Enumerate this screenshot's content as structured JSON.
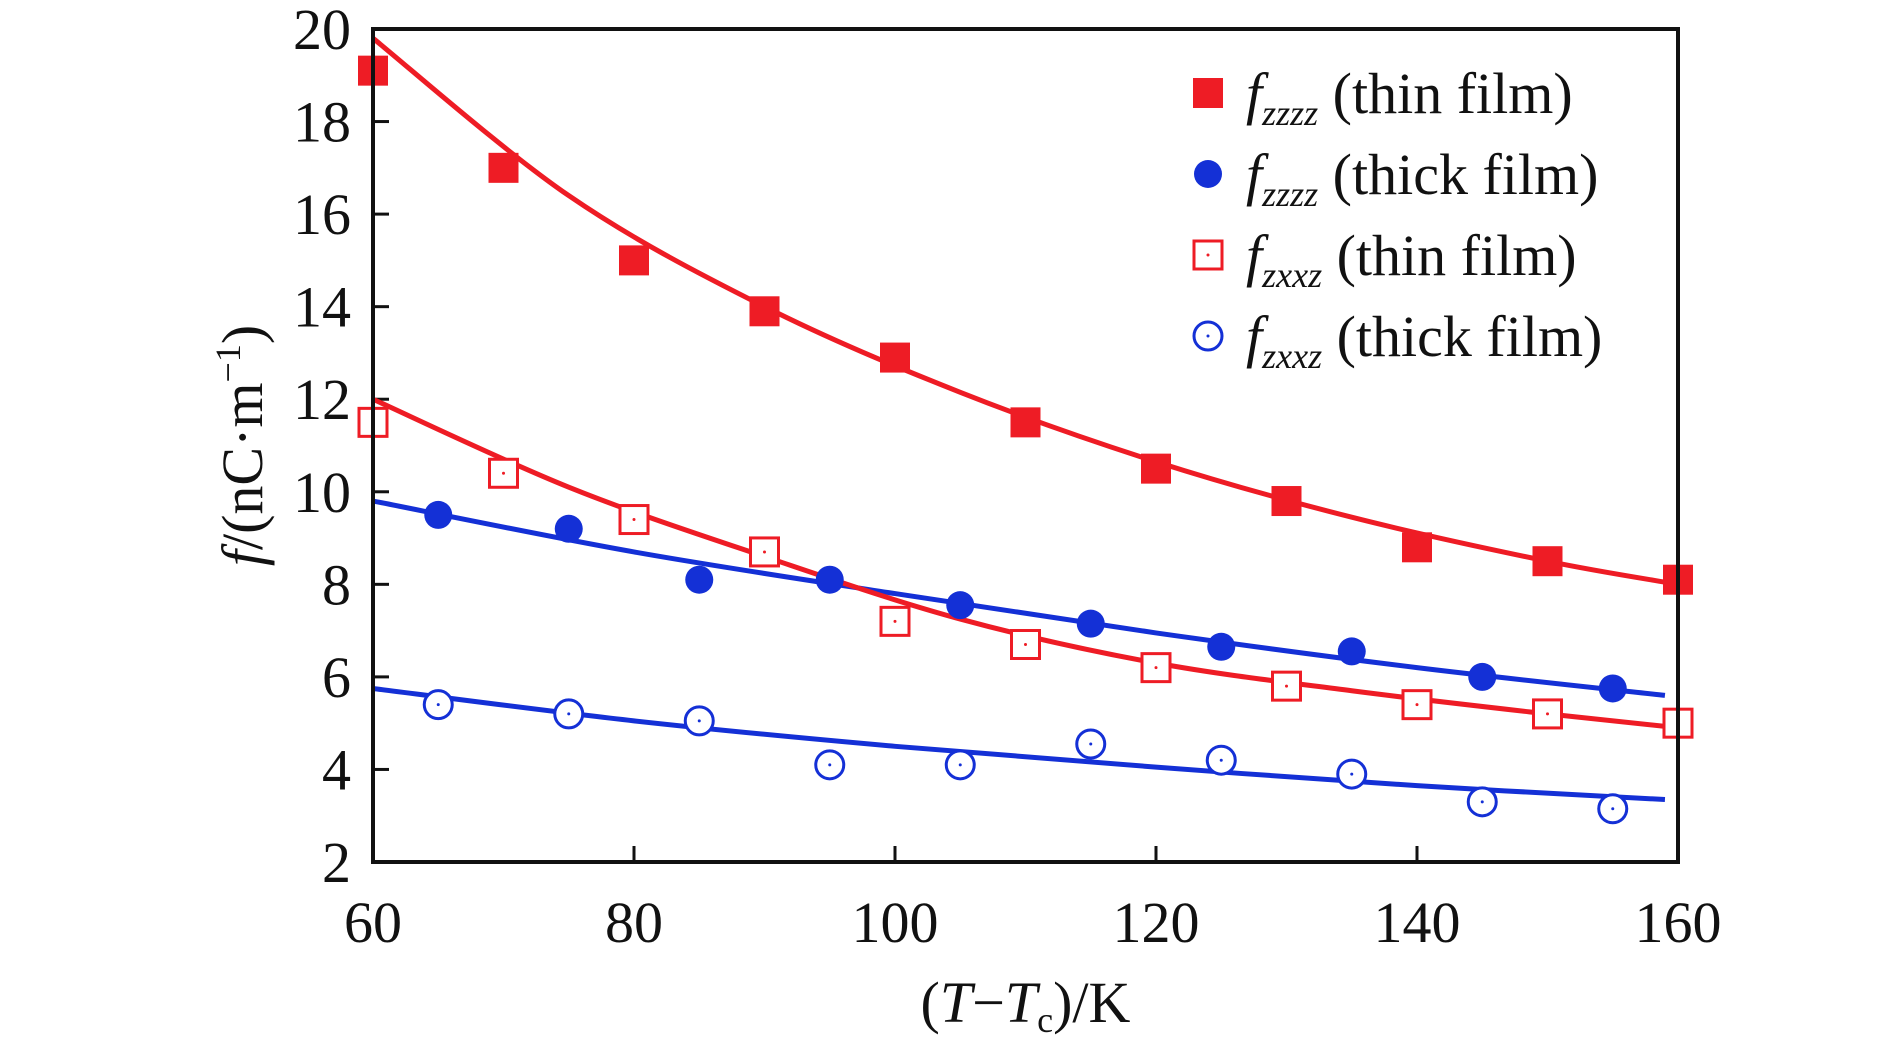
{
  "chart_data": {
    "type": "scatter",
    "xlabel": {
      "open": "(",
      "T": "T",
      "minus": "−",
      "Tc_base": "T",
      "Tc_sub": "c",
      "close": ")/K"
    },
    "ylabel": {
      "f": "f",
      "rest": "/(nC·m",
      "sup": "−1",
      "close": ")"
    },
    "xlim": [
      60,
      160
    ],
    "ylim": [
      2,
      20
    ],
    "xticks": [
      60,
      80,
      100,
      120,
      140,
      160
    ],
    "yticks": [
      2,
      4,
      6,
      8,
      10,
      12,
      14,
      16,
      18,
      20
    ],
    "legend_position": "top-right",
    "colors": {
      "red": "#ee1c25",
      "blue": "#1430d6"
    },
    "series": [
      {
        "legend_f": "f",
        "legend_sub": "zzzz",
        "legend_text": " (thin film)",
        "marker": "filled-square",
        "color": "#ee1c25",
        "x": [
          60,
          70,
          80,
          90,
          100,
          110,
          120,
          130,
          140,
          150,
          160
        ],
        "y": [
          19.1,
          17.0,
          15.0,
          13.9,
          12.9,
          11.5,
          10.5,
          9.8,
          8.8,
          8.5,
          8.1
        ],
        "fit": {
          "x": [
            60,
            75,
            90,
            105,
            120,
            135,
            150,
            160
          ],
          "y": [
            19.8,
            16.4,
            14.0,
            12.15,
            10.65,
            9.45,
            8.5,
            8.0
          ]
        }
      },
      {
        "legend_f": "f",
        "legend_sub": "zzzz",
        "legend_text": " (thick film)",
        "marker": "filled-circle",
        "color": "#1430d6",
        "x": [
          65,
          75,
          85,
          95,
          105,
          115,
          125,
          135,
          145,
          155
        ],
        "y": [
          9.5,
          9.2,
          8.1,
          8.1,
          7.55,
          7.15,
          6.65,
          6.55,
          6.0,
          5.75
        ],
        "fit": {
          "x": [
            60,
            80,
            100,
            120,
            140,
            159
          ],
          "y": [
            9.8,
            8.7,
            7.8,
            6.95,
            6.2,
            5.6
          ]
        }
      },
      {
        "legend_f": "f",
        "legend_sub": "zxxz",
        "legend_text": " (thin film)",
        "marker": "open-square",
        "color": "#ee1c25",
        "x": [
          60,
          70,
          80,
          90,
          100,
          110,
          120,
          130,
          140,
          150,
          160
        ],
        "y": [
          11.5,
          10.4,
          9.4,
          8.7,
          7.2,
          6.7,
          6.2,
          5.8,
          5.4,
          5.2,
          5.0
        ],
        "fit": {
          "x": [
            60,
            75,
            90,
            105,
            120,
            135,
            150,
            160
          ],
          "y": [
            12.0,
            10.1,
            8.6,
            7.25,
            6.3,
            5.7,
            5.2,
            4.9
          ]
        }
      },
      {
        "legend_f": "f",
        "legend_sub": "zxxz",
        "legend_text": " (thick film)",
        "marker": "open-circle",
        "color": "#1430d6",
        "x": [
          65,
          75,
          85,
          95,
          105,
          115,
          125,
          135,
          145,
          155
        ],
        "y": [
          5.4,
          5.2,
          5.05,
          4.1,
          4.1,
          4.55,
          4.2,
          3.9,
          3.3,
          3.15
        ],
        "fit": {
          "x": [
            60,
            80,
            100,
            120,
            140,
            159
          ],
          "y": [
            5.75,
            5.05,
            4.5,
            4.05,
            3.65,
            3.35
          ]
        }
      }
    ]
  }
}
